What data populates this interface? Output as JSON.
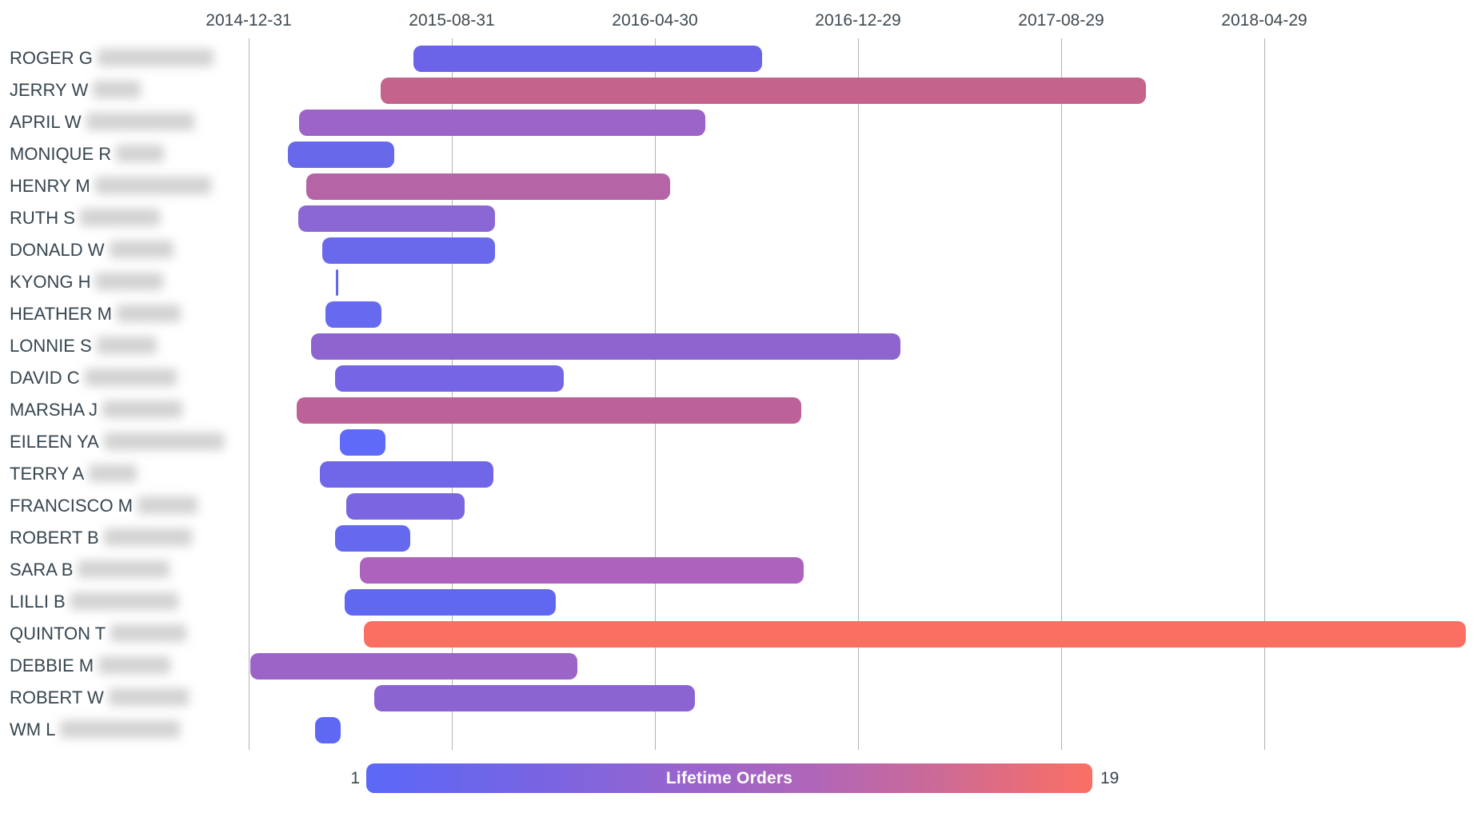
{
  "chart_data": {
    "type": "bar",
    "subtype": "gantt-timeline",
    "title": "",
    "x_axis": {
      "tick_labels": [
        "2014-12-31",
        "2015-08-31",
        "2016-04-30",
        "2016-12-29",
        "2017-08-29",
        "2018-04-29"
      ],
      "tick_interval_days": 243,
      "grid": true
    },
    "legend": {
      "label": "Lifetime Orders",
      "min": "1",
      "max": "19",
      "gradient_colors": [
        "#5a68f7",
        "#9a64cc",
        "#fb6f63"
      ],
      "position": "bottom"
    },
    "rows": [
      {
        "label": "ROGER G",
        "redacted": true,
        "redacted_width": 145,
        "start": "2015-07-16",
        "end": "2016-09-05",
        "color": "#6b63e8"
      },
      {
        "label": "JERRY W",
        "redacted": true,
        "redacted_width": 60,
        "start": "2015-06-07",
        "end": "2017-12-08",
        "color": "#c4638c"
      },
      {
        "label": "APRIL W",
        "redacted": true,
        "redacted_width": 135,
        "start": "2015-03-01",
        "end": "2016-06-29",
        "color": "#9c63c8"
      },
      {
        "label": "MONIQUE R",
        "redacted": true,
        "redacted_width": 60,
        "start": "2015-02-16",
        "end": "2015-06-23",
        "color": "#6769ea"
      },
      {
        "label": "HENRY M",
        "redacted": true,
        "redacted_width": 145,
        "start": "2015-03-10",
        "end": "2016-05-18",
        "color": "#b564a6"
      },
      {
        "label": "RUTH S",
        "redacted": true,
        "redacted_width": 100,
        "start": "2015-02-28",
        "end": "2015-10-22",
        "color": "#8a67d5"
      },
      {
        "label": "DONALD W",
        "redacted": true,
        "redacted_width": 80,
        "start": "2015-03-29",
        "end": "2015-10-22",
        "color": "#6a69ec"
      },
      {
        "label": "KYONG H",
        "redacted": true,
        "redacted_width": 85,
        "start": "2015-04-14",
        "end": "2015-04-16",
        "color": "#6366f1"
      },
      {
        "label": "HEATHER M",
        "redacted": true,
        "redacted_width": 80,
        "start": "2015-04-02",
        "end": "2015-06-08",
        "color": "#666aee"
      },
      {
        "label": "LONNIE S",
        "redacted": true,
        "redacted_width": 75,
        "start": "2015-03-16",
        "end": "2017-02-18",
        "color": "#8e64cf"
      },
      {
        "label": "DAVID C",
        "redacted": true,
        "redacted_width": 115,
        "start": "2015-04-13",
        "end": "2016-01-12",
        "color": "#7466e4"
      },
      {
        "label": "MARSHA J",
        "redacted": true,
        "redacted_width": 100,
        "start": "2015-02-26",
        "end": "2016-10-22",
        "color": "#bd6298"
      },
      {
        "label": "EILEEN YA",
        "redacted": true,
        "redacted_width": 150,
        "start": "2015-04-19",
        "end": "2015-06-13",
        "color": "#5f6bf8"
      },
      {
        "label": "TERRY A",
        "redacted": true,
        "redacted_width": 60,
        "start": "2015-03-26",
        "end": "2015-10-20",
        "color": "#6f66e8"
      },
      {
        "label": "FRANCISCO M",
        "redacted": true,
        "redacted_width": 75,
        "start": "2015-04-27",
        "end": "2015-09-15",
        "color": "#7b65e0"
      },
      {
        "label": "ROBERT B",
        "redacted": true,
        "redacted_width": 110,
        "start": "2015-04-13",
        "end": "2015-07-12",
        "color": "#6469ee"
      },
      {
        "label": "SARA B",
        "redacted": true,
        "redacted_width": 115,
        "start": "2015-05-13",
        "end": "2016-10-25",
        "color": "#ad63be"
      },
      {
        "label": "LILLI B",
        "redacted": true,
        "redacted_width": 135,
        "start": "2015-04-25",
        "end": "2016-01-02",
        "color": "#6067f0"
      },
      {
        "label": "QUINTON T",
        "redacted": true,
        "redacted_width": 95,
        "start": "2015-05-18",
        "end": "2018-12-26",
        "color": "#fb6f63"
      },
      {
        "label": "DEBBIE M",
        "redacted": true,
        "redacted_width": 90,
        "start": "2015-01-02",
        "end": "2016-01-28",
        "color": "#9c64c6"
      },
      {
        "label": "ROBERT W",
        "redacted": true,
        "redacted_width": 100,
        "start": "2015-05-30",
        "end": "2016-06-17",
        "color": "#8b64d2"
      },
      {
        "label": "WM L",
        "redacted": true,
        "redacted_width": 150,
        "start": "2015-03-20",
        "end": "2015-04-20",
        "color": "#5f68f2"
      }
    ]
  },
  "colors": {
    "background": "#ffffff",
    "gridline": "#b3b3b3",
    "axis_text": "#3e4a52",
    "label_text": "#36454f",
    "legend_text": "#ffffff"
  }
}
